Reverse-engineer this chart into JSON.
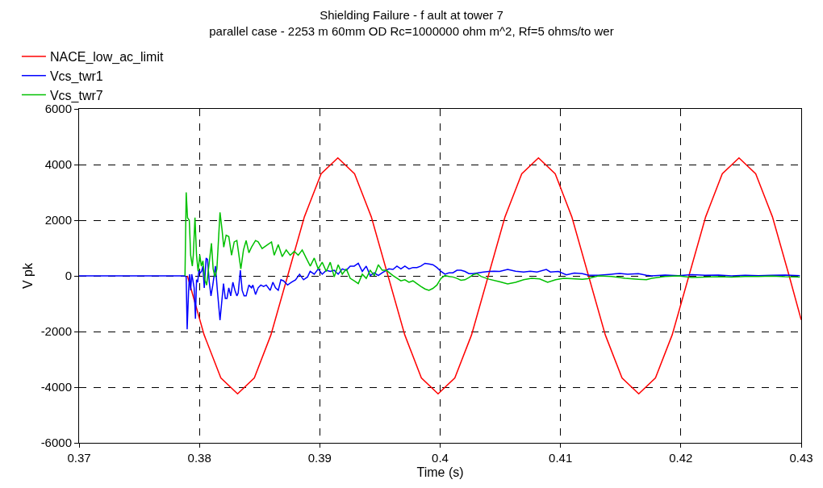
{
  "chart_data": {
    "type": "line",
    "title": "Shielding Failure - f ault at tower 7",
    "subtitle": "parallel case - 2253 m 60mm OD Rc=1000000 ohm m^2, Rf=5 ohms/to wer",
    "xlabel": "Time (s)",
    "ylabel": "V pk",
    "xlim": [
      0.37,
      0.43
    ],
    "xticks": [
      0.37,
      0.38,
      0.39,
      0.4,
      0.41,
      0.42,
      0.43
    ],
    "ylim": [
      -6000,
      6000
    ],
    "yticks": [
      -6000,
      -4000,
      -2000,
      0,
      2000,
      4000,
      6000
    ],
    "grid": true,
    "legend": "top left",
    "marker": "none",
    "line_style": "solid",
    "series": [
      {
        "name": "NACE_low_ac_limit",
        "color": "#ff0000",
        "x": [
          0.379,
          0.38039,
          0.38178,
          0.38317,
          0.38456,
          0.38594,
          0.38733,
          0.38872,
          0.39011,
          0.3915,
          0.39289,
          0.39428,
          0.39567,
          0.39706,
          0.39844,
          0.39983,
          0.40122,
          0.40261,
          0.404,
          0.40539,
          0.40678,
          0.40817,
          0.40956,
          0.41094,
          0.41233,
          0.41372,
          0.41511,
          0.4165,
          0.41789,
          0.41928,
          0.42067,
          0.42206,
          0.42344,
          0.42483,
          0.42622,
          0.42761,
          0.429,
          0.43
        ],
        "values": [
          0,
          -2120,
          -3670,
          -4240,
          -3670,
          -2120,
          0,
          2120,
          3670,
          4240,
          3670,
          2120,
          0,
          -2120,
          -3670,
          -4240,
          -3670,
          -2120,
          0,
          2120,
          3670,
          4240,
          3670,
          2120,
          0,
          -2120,
          -3670,
          -4240,
          -3670,
          -2120,
          0,
          2120,
          3670,
          4240,
          3670,
          2120,
          0,
          -1580
        ]
      },
      {
        "name": "Vcs_twr1",
        "color": "#0000ff",
        "x": [
          0.37,
          0.3788,
          0.3789,
          0.37898,
          0.3791,
          0.37918,
          0.37927,
          0.37936,
          0.37945,
          0.37956,
          0.37967,
          0.37976,
          0.37985,
          0.37996,
          0.38007,
          0.38018,
          0.38029,
          0.3804,
          0.38056,
          0.38067,
          0.38082,
          0.38096,
          0.38111,
          0.38133,
          0.38149,
          0.38171,
          0.38184,
          0.382,
          0.38215,
          0.38229,
          0.38244,
          0.3826,
          0.38278,
          0.38295,
          0.38311,
          0.38322,
          0.3834,
          0.38355,
          0.38371,
          0.38388,
          0.38411,
          0.38433,
          0.38444,
          0.38466,
          0.38488,
          0.3851,
          0.38533,
          0.38555,
          0.38588,
          0.3861,
          0.38632,
          0.38655,
          0.38677,
          0.38699,
          0.38732,
          0.38765,
          0.38799,
          0.38832,
          0.38865,
          0.38898,
          0.3892,
          0.38954,
          0.38987,
          0.3902,
          0.39054,
          0.39087,
          0.3912,
          0.39153,
          0.39187,
          0.3922,
          0.39253,
          0.39286,
          0.3932,
          0.39353,
          0.39386,
          0.39419,
          0.39453,
          0.39486,
          0.39519,
          0.39574,
          0.39608,
          0.39641,
          0.39674,
          0.39707,
          0.39741,
          0.39774,
          0.39807,
          0.3984,
          0.39874,
          0.39907,
          0.3994,
          0.39973,
          0.40007,
          0.4004,
          0.40073,
          0.40106,
          0.4014,
          0.40173,
          0.40206,
          0.40239,
          0.40273,
          0.40317,
          0.40361,
          0.40406,
          0.4045,
          0.40494,
          0.40561,
          0.40627,
          0.40694,
          0.40749,
          0.40805,
          0.40882,
          0.40916,
          0.40982,
          0.41049,
          0.41115,
          0.41182,
          0.41226,
          0.41315,
          0.41425,
          0.41492,
          0.41558,
          0.41647,
          0.41714,
          0.41758,
          0.41869,
          0.4198,
          0.42091,
          0.42201,
          0.42312,
          0.42423,
          0.42534,
          0.42645,
          0.42756,
          0.42867,
          0.42989
        ],
        "values": [
          0,
          0,
          -40,
          -1920,
          -520,
          60,
          -520,
          60,
          -140,
          -430,
          -1540,
          -140,
          -230,
          200,
          110,
          160,
          350,
          -430,
          640,
          590,
          -230,
          -720,
          -330,
          350,
          -520,
          -1590,
          -1000,
          -280,
          -810,
          -810,
          -430,
          -720,
          -230,
          -520,
          -720,
          -620,
          200,
          -520,
          -720,
          -720,
          -330,
          -430,
          -330,
          -670,
          -430,
          -330,
          -380,
          -330,
          -520,
          -230,
          -430,
          -520,
          -140,
          -180,
          -330,
          -230,
          -140,
          60,
          -140,
          -40,
          160,
          60,
          250,
          60,
          200,
          160,
          200,
          60,
          250,
          200,
          350,
          350,
          450,
          160,
          350,
          10,
          110,
          10,
          110,
          250,
          230,
          350,
          250,
          350,
          250,
          300,
          300,
          350,
          450,
          430,
          400,
          300,
          160,
          60,
          110,
          110,
          200,
          200,
          160,
          80,
          80,
          110,
          140,
          160,
          170,
          160,
          230,
          170,
          140,
          170,
          140,
          230,
          140,
          160,
          40,
          100,
          80,
          30,
          20,
          60,
          90,
          60,
          80,
          20,
          0,
          30,
          10,
          40,
          20,
          30,
          0,
          20,
          10,
          20,
          30,
          10
        ]
      },
      {
        "name": "Vcs_twr7",
        "color": "#00c000",
        "x": [
          0.3788,
          0.3789,
          0.37901,
          0.37916,
          0.37927,
          0.37941,
          0.37949,
          0.37963,
          0.37976,
          0.37989,
          0.38003,
          0.38016,
          0.38029,
          0.38045,
          0.3806,
          0.38078,
          0.381,
          0.38114,
          0.38129,
          0.38145,
          0.38171,
          0.38189,
          0.38202,
          0.38222,
          0.38244,
          0.38267,
          0.38289,
          0.38311,
          0.38344,
          0.38366,
          0.38388,
          0.38411,
          0.38433,
          0.38466,
          0.38488,
          0.38521,
          0.38566,
          0.38599,
          0.38621,
          0.38655,
          0.38688,
          0.38721,
          0.38754,
          0.38788,
          0.38821,
          0.38854,
          0.38887,
          0.38921,
          0.38954,
          0.38987,
          0.3902,
          0.39054,
          0.39087,
          0.3912,
          0.39153,
          0.39187,
          0.3922,
          0.39253,
          0.39286,
          0.3932,
          0.39353,
          0.39386,
          0.39419,
          0.39453,
          0.39486,
          0.39519,
          0.39552,
          0.39608,
          0.39674,
          0.39707,
          0.39741,
          0.39774,
          0.39807,
          0.3984,
          0.39874,
          0.39907,
          0.3994,
          0.39973,
          0.40007,
          0.4004,
          0.40073,
          0.40106,
          0.4014,
          0.40173,
          0.40206,
          0.40239,
          0.40273,
          0.40306,
          0.40339,
          0.40406,
          0.40494,
          0.40561,
          0.40627,
          0.40694,
          0.4076,
          0.40827,
          0.40893,
          0.4096,
          0.41026,
          0.41093,
          0.41182,
          0.41226,
          0.41315,
          0.41425,
          0.41536,
          0.41647,
          0.41714,
          0.41758,
          0.41869,
          0.4198,
          0.42091,
          0.42201,
          0.42312,
          0.42423,
          0.42534,
          0.42645,
          0.42756,
          0.42867,
          0.42989
        ],
        "values": [
          0,
          3000,
          2090,
          1990,
          740,
          350,
          740,
          2090,
          740,
          160,
          740,
          350,
          540,
          -140,
          -330,
          350,
          1170,
          250,
          -40,
          250,
          2280,
          1610,
          1030,
          1460,
          1410,
          740,
          1220,
          1270,
          250,
          930,
          1270,
          830,
          1030,
          1270,
          1220,
          980,
          1120,
          1220,
          740,
          1120,
          690,
          930,
          740,
          880,
          740,
          930,
          640,
          350,
          640,
          250,
          490,
          160,
          490,
          -40,
          400,
          60,
          250,
          -90,
          -180,
          -280,
          60,
          -90,
          200,
          10,
          400,
          200,
          200,
          10,
          -180,
          -140,
          -230,
          -180,
          -280,
          -380,
          -470,
          -520,
          -450,
          -330,
          -90,
          10,
          -20,
          -40,
          -90,
          -160,
          -140,
          -60,
          40,
          80,
          -20,
          -120,
          -210,
          -290,
          -230,
          -140,
          -90,
          -110,
          -230,
          -140,
          -90,
          -100,
          -120,
          -100,
          0,
          -20,
          -90,
          -120,
          -140,
          -90,
          -20,
          0,
          -60,
          -40,
          -30,
          -40,
          -20,
          -20,
          -10,
          -30,
          -40
        ]
      }
    ]
  }
}
